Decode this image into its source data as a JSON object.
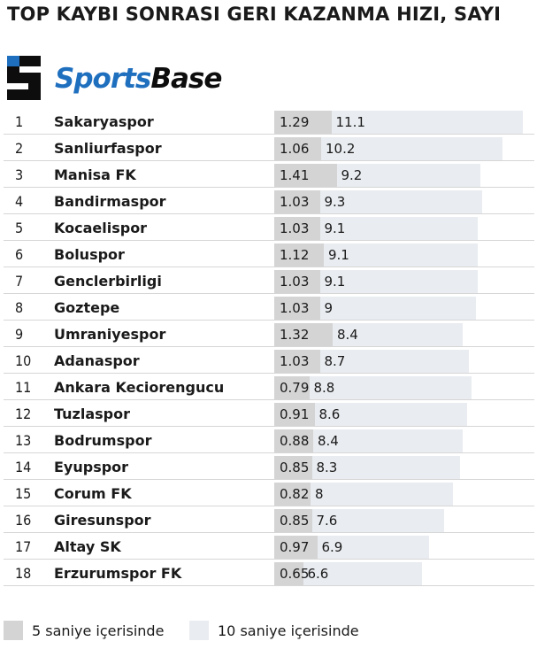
{
  "title": "TOP KAYBI SONRASI GERI KAZANMA HIZI, SAYI",
  "brand": {
    "part1": "Sports",
    "part2": "Base",
    "accent_color": "#1f6fbf"
  },
  "legend": {
    "five": "5 saniye içerisinde",
    "ten": "10 saniye içerisinde"
  },
  "colors": {
    "five_seconds": "#d4d4d4",
    "ten_seconds": "#e9ecf0"
  },
  "chart_data": {
    "type": "bar",
    "title": "TOP KAYBI SONRASI GERI KAZANMA HIZI, SAYI",
    "ranks": [
      "1",
      "2",
      "3",
      "4",
      "5",
      "6",
      "7",
      "8",
      "9",
      "10",
      "11",
      "12",
      "13",
      "14",
      "15",
      "16",
      "17",
      "18"
    ],
    "categories": [
      "Sakaryaspor",
      "Sanliurfaspor",
      "Manisa FK",
      "Bandirmaspor",
      "Kocaelispor",
      "Boluspor",
      "Genclerbirligi",
      "Goztepe",
      "Umraniyespor",
      "Adanaspor",
      "Ankara Keciorengucu",
      "Tuzlaspor",
      "Bodrumspor",
      "Eyupspor",
      "Corum FK",
      "Giresunspor",
      "Altay SK",
      "Erzurumspor FK"
    ],
    "series": [
      {
        "name": "5 saniye içerisinde",
        "values": [
          1.29,
          1.06,
          1.41,
          1.03,
          1.03,
          1.12,
          1.03,
          1.03,
          1.32,
          1.03,
          0.79,
          0.91,
          0.88,
          0.85,
          0.82,
          0.85,
          0.97,
          0.65
        ]
      },
      {
        "name": "10 saniye içerisinde",
        "values": [
          11.1,
          10.2,
          9.2,
          9.3,
          9.1,
          9.1,
          9.1,
          9,
          8.4,
          8.7,
          8.8,
          8.6,
          8.4,
          8.3,
          8,
          7.6,
          6.9,
          6.6
        ]
      }
    ]
  }
}
